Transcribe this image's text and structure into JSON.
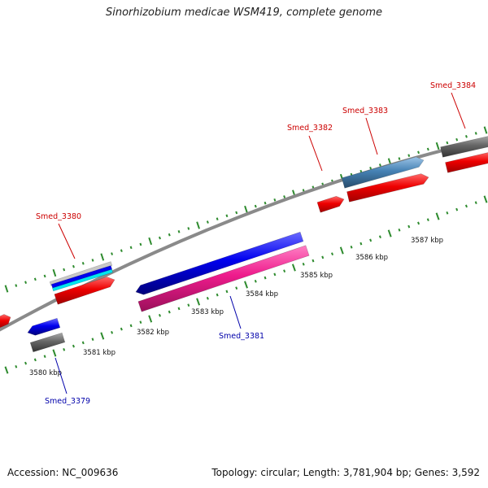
{
  "title": "Sinorhizobium medicae WSM419, complete genome",
  "footer": {
    "accession": "Accession: NC_009636",
    "summary": "Topology: circular; Length: 3,781,904 bp; Genes: 3,592"
  },
  "ruler": {
    "ticks_kbp": [
      {
        "pos": 3580,
        "label": "3580 kbp"
      },
      {
        "pos": 3581,
        "label": "3581 kbp"
      },
      {
        "pos": 3582,
        "label": "3582 kbp"
      },
      {
        "pos": 3583,
        "label": "3583 kbp"
      },
      {
        "pos": 3584,
        "label": "3584 kbp"
      },
      {
        "pos": 3585,
        "label": "3585 kbp"
      },
      {
        "pos": 3586,
        "label": "3586 kbp"
      },
      {
        "pos": 3587,
        "label": "3587 kbp"
      }
    ]
  },
  "gene_labels": [
    {
      "name": "Smed_3380",
      "strand": "forward"
    },
    {
      "name": "Smed_3382",
      "strand": "forward"
    },
    {
      "name": "Smed_3383",
      "strand": "forward"
    },
    {
      "name": "Smed_3384",
      "strand": "forward"
    },
    {
      "name": "Smed_3381",
      "strand": "reverse"
    },
    {
      "name": "Smed_3379",
      "strand": "reverse"
    }
  ],
  "colors": {
    "backbone": "#8a8a8a",
    "tick": "#2e8b2e",
    "gene_forward": "#ee0000",
    "gene_reverse": "#0000ee",
    "rna_pink": "#ee1b8c",
    "gray_feature": "#666666",
    "steel_feature": "#4682b4",
    "cyan_feature": "#00e5ee",
    "label_forward": "#cc0000",
    "label_reverse": "#0000aa"
  }
}
